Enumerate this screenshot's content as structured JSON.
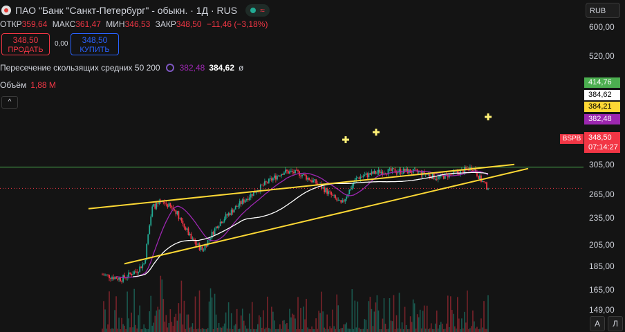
{
  "header": {
    "title": "ПАО \"Банк \"Санкт-Петербург\" - обыкн. · 1Д · RUS",
    "status_icon": "≈"
  },
  "ohlc": [
    {
      "label": "ОТКР",
      "value": "359,64"
    },
    {
      "label": "МАКС",
      "value": "361,47"
    },
    {
      "label": "МИН",
      "value": "346,53"
    },
    {
      "label": "ЗАКР",
      "value": "348,50"
    }
  ],
  "change": "−11,46 (−3,18%)",
  "trade": {
    "sell_price": "348,50",
    "sell_label": "ПРОДАТЬ",
    "spread": "0,00",
    "buy_price": "348,50",
    "buy_label": "КУПИТЬ"
  },
  "indicator": {
    "name": "Пересечение скользящих средних 50 200",
    "value1": "382,48",
    "value2": "384,62",
    "symbol": "ø"
  },
  "volume": {
    "label": "Объём",
    "value": "1,88 M"
  },
  "currency": "RUB",
  "price_axis_ticks": [
    "600,00",
    "520,00",
    "305,00",
    "265,00",
    "235,00",
    "205,00",
    "185,00",
    "165,00",
    "149,00"
  ],
  "axis_badges": [
    {
      "value": "414,76",
      "color": "#4caf50"
    },
    {
      "value": "384,62",
      "color": "#ffffff"
    },
    {
      "value": "384,21",
      "color": "#fdd835"
    },
    {
      "value": "382,48",
      "color": "#9c27b0"
    }
  ],
  "last_price": {
    "exchange": "BSPB",
    "value": "348,50",
    "countdown": "07:14:27"
  },
  "scale_buttons": [
    "А",
    "Л"
  ],
  "colors": {
    "up": "#22ab94",
    "down": "#f23645",
    "ma50": "#9c27b0",
    "ma200": "#ffffff",
    "trendline": "#fdd835",
    "hline": "#4caf50"
  },
  "chart_data": {
    "type": "candlestick",
    "y_scale": "log",
    "horizontal_line": 414.76,
    "last_price_line": 348.5,
    "series": [
      {
        "name": "ma50",
        "color": "#9c27b0"
      },
      {
        "name": "ma200",
        "color": "#ffffff"
      }
    ],
    "trendlines": [
      {
        "name": "upper",
        "from": [
          0.0,
          295
        ],
        "to": [
          1.0,
          424
        ]
      },
      {
        "name": "lower",
        "from": [
          0.08,
          188
        ],
        "to": [
          1.0,
          410
        ]
      }
    ]
  }
}
